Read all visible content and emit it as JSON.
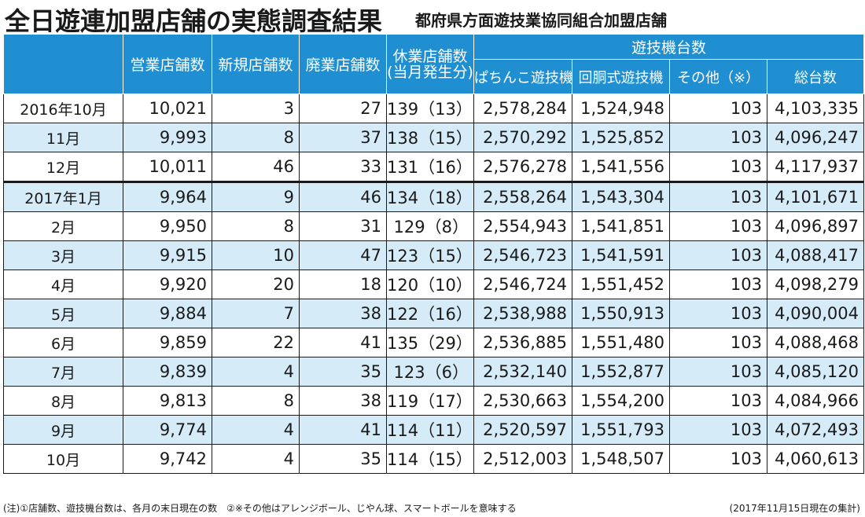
{
  "title": "全日遊連加盟店舗の実態調査結果",
  "subtitle": "都府県方面遊技業協同組合加盟店舗",
  "header": {
    "group_label": "遊技機台数",
    "columns": [
      "営業店舗数",
      "新規店舗数",
      "廃業店舗数",
      "休業店舗数",
      "(当月発生分)",
      "ぱちんこ遊技機",
      "回胴式遊技機",
      "その他（※）",
      "総台数"
    ]
  },
  "rows": [
    {
      "month": "2016年10月",
      "open": "10,021",
      "new": "3",
      "closed": "27",
      "suspended": "139（13）",
      "pachinko": "2,578,284",
      "slot": "1,524,948",
      "other": "103",
      "total": "4,103,335"
    },
    {
      "month": "11月",
      "open": "9,993",
      "new": "8",
      "closed": "37",
      "suspended": "138（15）",
      "pachinko": "2,570,292",
      "slot": "1,525,852",
      "other": "103",
      "total": "4,096,247"
    },
    {
      "month": "12月",
      "open": "10,011",
      "new": "46",
      "closed": "33",
      "suspended": "131（16）",
      "pachinko": "2,576,278",
      "slot": "1,541,556",
      "other": "103",
      "total": "4,117,937"
    },
    {
      "month": "2017年1月",
      "open": "9,964",
      "new": "9",
      "closed": "46",
      "suspended": "134（18）",
      "pachinko": "2,558,264",
      "slot": "1,543,304",
      "other": "103",
      "total": "4,101,671"
    },
    {
      "month": "2月",
      "open": "9,950",
      "new": "8",
      "closed": "31",
      "suspended": "129（8）",
      "pachinko": "2,554,943",
      "slot": "1,541,851",
      "other": "103",
      "total": "4,096,897"
    },
    {
      "month": "3月",
      "open": "9,915",
      "new": "10",
      "closed": "47",
      "suspended": "123（15）",
      "pachinko": "2,546,723",
      "slot": "1,541,591",
      "other": "103",
      "total": "4,088,417"
    },
    {
      "month": "4月",
      "open": "9,920",
      "new": "20",
      "closed": "18",
      "suspended": "120（10）",
      "pachinko": "2,546,724",
      "slot": "1,551,452",
      "other": "103",
      "total": "4,098,279"
    },
    {
      "month": "5月",
      "open": "9,884",
      "new": "7",
      "closed": "38",
      "suspended": "122（16）",
      "pachinko": "2,538,988",
      "slot": "1,550,913",
      "other": "103",
      "total": "4,090,004"
    },
    {
      "month": "6月",
      "open": "9,859",
      "new": "22",
      "closed": "41",
      "suspended": "135（29）",
      "pachinko": "2,536,885",
      "slot": "1,551,480",
      "other": "103",
      "total": "4,088,468"
    },
    {
      "month": "7月",
      "open": "9,839",
      "new": "4",
      "closed": "35",
      "suspended": "123（6）",
      "pachinko": "2,532,140",
      "slot": "1,552,877",
      "other": "103",
      "total": "4,085,120"
    },
    {
      "month": "8月",
      "open": "9,813",
      "new": "8",
      "closed": "38",
      "suspended": "119（17）",
      "pachinko": "2,530,663",
      "slot": "1,554,200",
      "other": "103",
      "total": "4,084,966"
    },
    {
      "month": "9月",
      "open": "9,774",
      "new": "4",
      "closed": "41",
      "suspended": "114（11）",
      "pachinko": "2,520,597",
      "slot": "1,551,793",
      "other": "103",
      "total": "4,072,493"
    },
    {
      "month": "10月",
      "open": "9,742",
      "new": "4",
      "closed": "35",
      "suspended": "114（15）",
      "pachinko": "2,512,003",
      "slot": "1,548,507",
      "other": "103",
      "total": "4,060,613"
    }
  ],
  "footer": {
    "note": "(注)①店舗数、遊技機台数は、各月の末日現在の数　②※その他はアレンジボール、じやん球、スマートボールを意味する",
    "as_of": "(2017年11月15日現在の集計)"
  },
  "colors": {
    "header_bg": "#1f8fd1",
    "alt_row_bg": "#d6ebf8"
  }
}
